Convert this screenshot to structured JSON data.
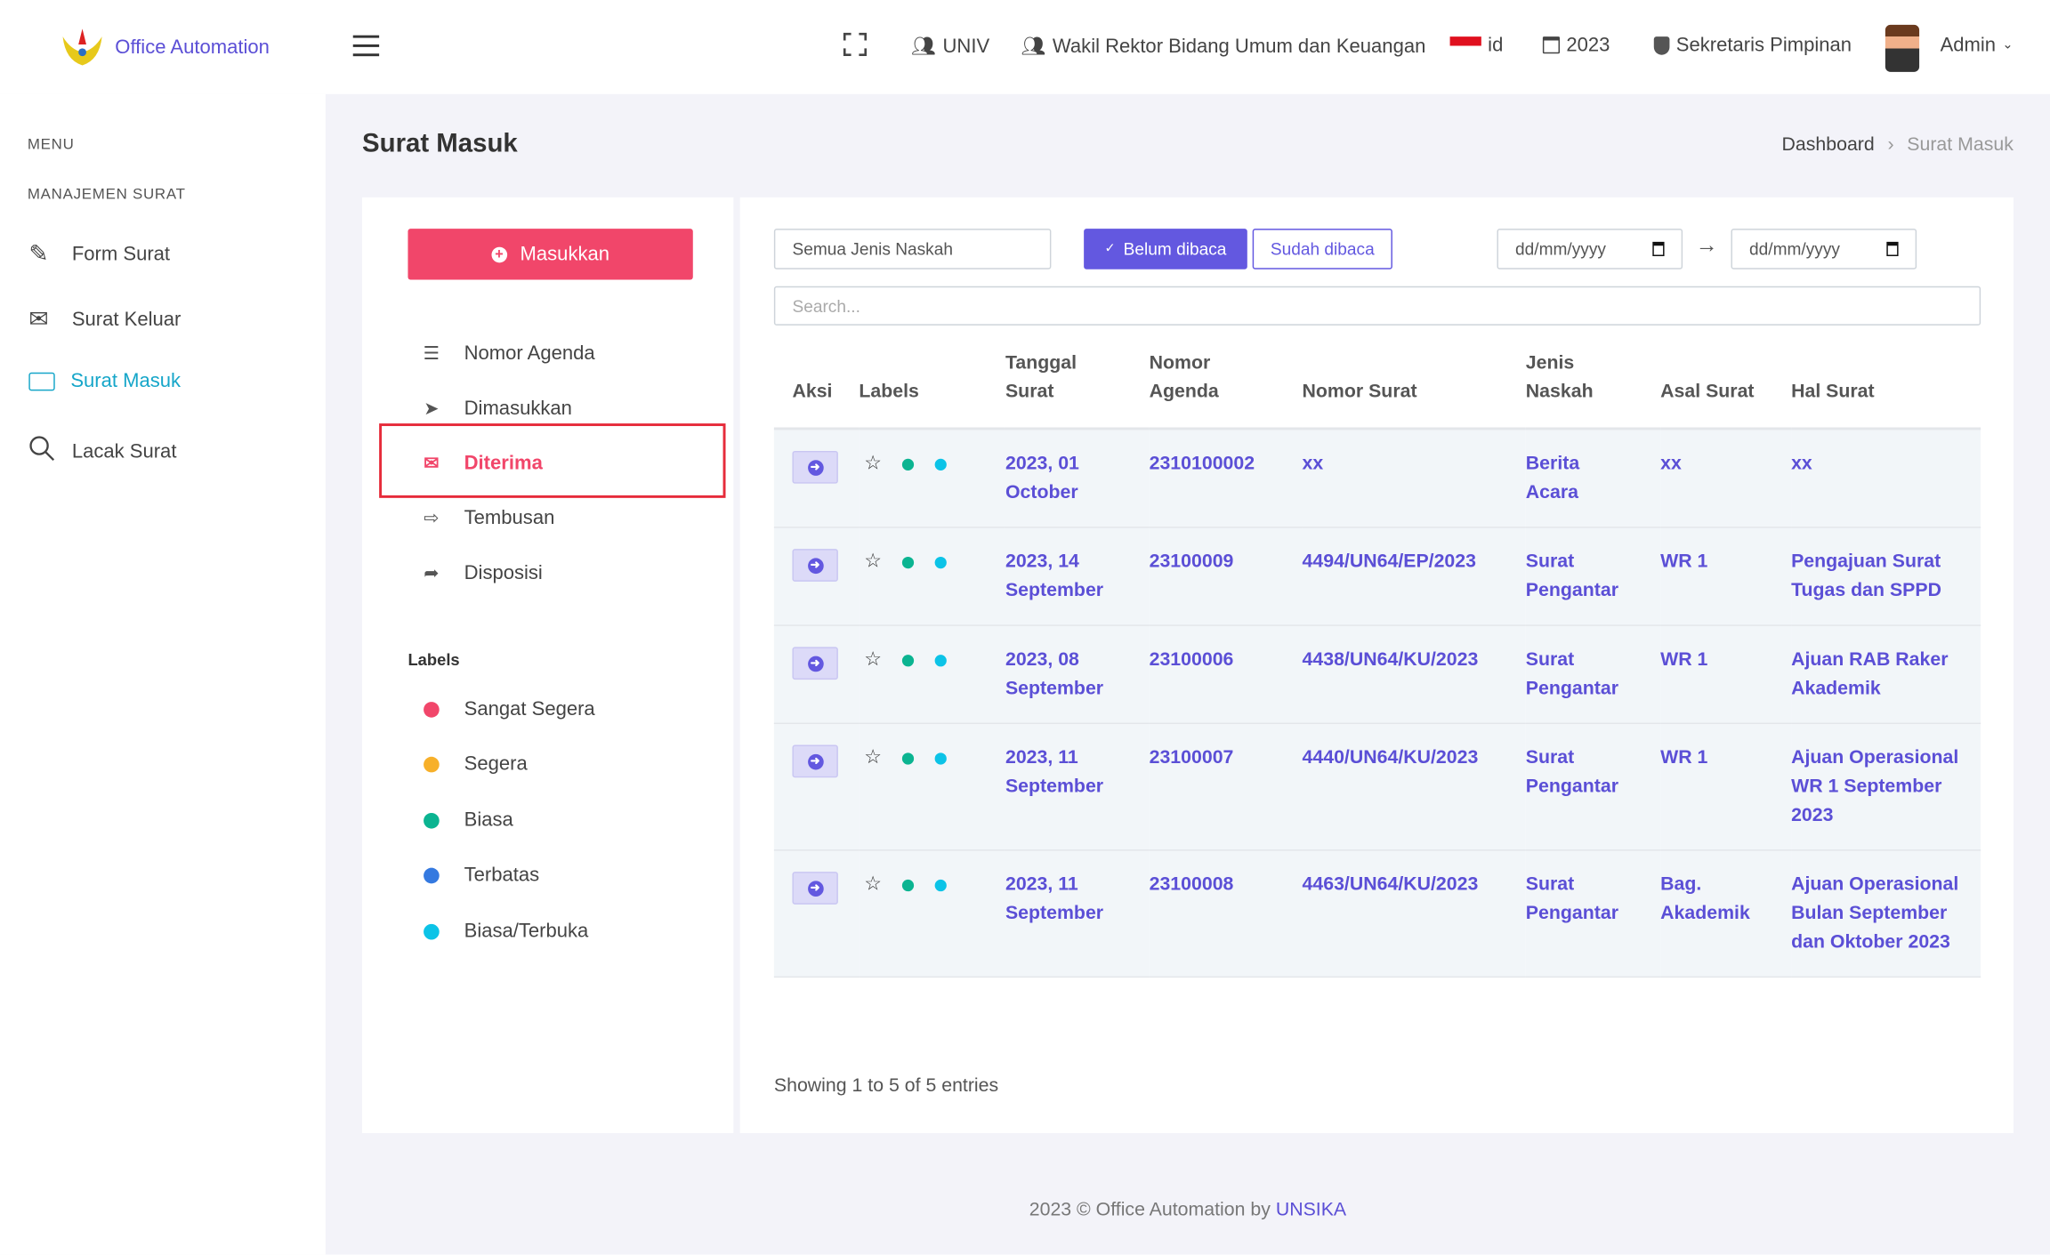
{
  "header": {
    "app_name": "Office Automation",
    "unit": "UNIV",
    "position": "Wakil Rektor Bidang Umum dan Keuangan",
    "lang": "id",
    "year": "2023",
    "role": "Sekretaris Pimpinan",
    "user": "Admin"
  },
  "sidebar": {
    "menu_heading": "MENU",
    "section_heading": "MANAJEMEN SURAT",
    "items": [
      {
        "label": "Form Surat"
      },
      {
        "label": "Surat Keluar"
      },
      {
        "label": "Surat Masuk"
      },
      {
        "label": "Lacak Surat"
      }
    ]
  },
  "page": {
    "title": "Surat Masuk",
    "breadcrumb": [
      "Dashboard",
      "Surat Masuk"
    ]
  },
  "left_panel": {
    "add_button": "Masukkan",
    "nav": [
      {
        "label": "Nomor Agenda"
      },
      {
        "label": "Dimasukkan"
      },
      {
        "label": "Diterima"
      },
      {
        "label": "Tembusan"
      },
      {
        "label": "Disposisi"
      }
    ],
    "labels_heading": "Labels",
    "labels": [
      {
        "label": "Sangat Segera",
        "color": "#f1466a"
      },
      {
        "label": "Segera",
        "color": "#f7b02a"
      },
      {
        "label": "Biasa",
        "color": "#0bb491"
      },
      {
        "label": "Terbatas",
        "color": "#3479e0"
      },
      {
        "label": "Biasa/Terbuka",
        "color": "#0cc3e7"
      }
    ]
  },
  "filters": {
    "jenis_naskah": "Semua Jenis Naskah",
    "unread_button": "Belum dibaca",
    "read_button": "Sudah dibaca",
    "date_from_placeholder": "dd/mm/yyyy",
    "date_to_placeholder": "dd/mm/yyyy",
    "search_placeholder": "Search..."
  },
  "table": {
    "headers": [
      "Aksi",
      "Labels",
      "Tanggal Surat",
      "Nomor Agenda",
      "Nomor Surat",
      "Jenis Naskah",
      "Asal Surat",
      "Hal Surat"
    ],
    "rows": [
      {
        "tanggal": "2023, 01 October",
        "agenda": "2310100002",
        "nomor": "xx",
        "jenis": "Berita Acara",
        "asal": "xx",
        "hal": "xx"
      },
      {
        "tanggal": "2023, 14 September",
        "agenda": "23100009",
        "nomor": "4494/UN64/EP/2023",
        "jenis": "Surat Pengantar",
        "asal": "WR 1",
        "hal": "Pengajuan Surat Tugas dan SPPD"
      },
      {
        "tanggal": "2023, 08 September",
        "agenda": "23100006",
        "nomor": "4438/UN64/KU/2023",
        "jenis": "Surat Pengantar",
        "asal": "WR 1",
        "hal": "Ajuan RAB Raker Akademik"
      },
      {
        "tanggal": "2023, 11 September",
        "agenda": "23100007",
        "nomor": "4440/UN64/KU/2023",
        "jenis": "Surat Pengantar",
        "asal": "WR 1",
        "hal": "Ajuan Operasional WR 1 September 2023"
      },
      {
        "tanggal": "2023, 11 September",
        "agenda": "23100008",
        "nomor": "4463/UN64/KU/2023",
        "jenis": "Surat Pengantar",
        "asal": "Bag. Akademik",
        "hal": "Ajuan Operasional Bulan September dan Oktober 2023"
      }
    ],
    "info": "Showing 1 to 5 of 5 entries"
  },
  "footer": {
    "text": "2023 © Office Automation by",
    "link": "UNSIKA"
  }
}
